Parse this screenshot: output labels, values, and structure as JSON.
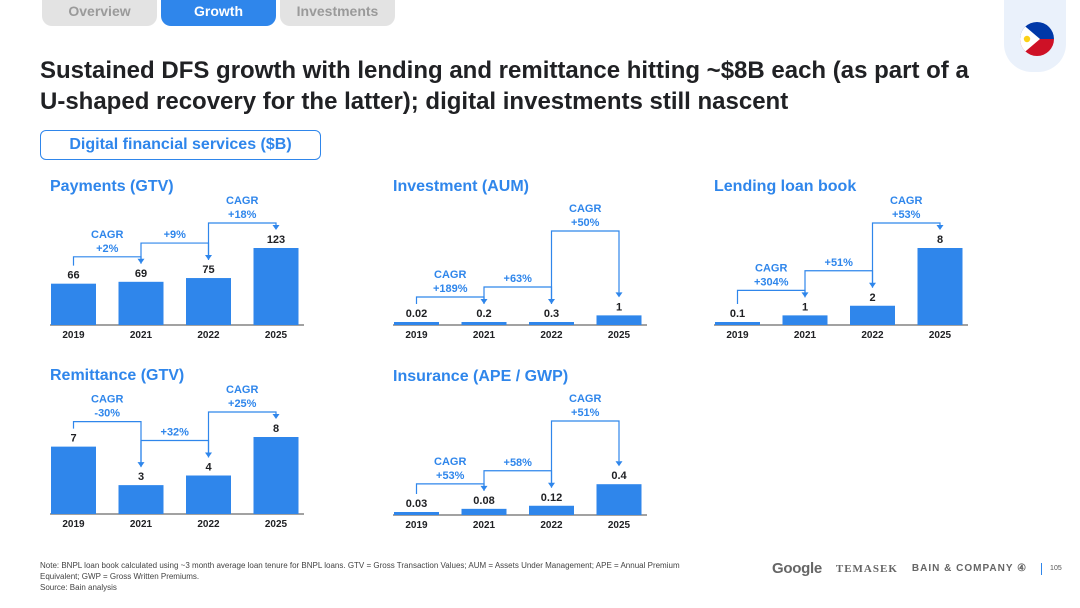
{
  "tabs": [
    {
      "label": "Overview",
      "active": false
    },
    {
      "label": "Growth",
      "active": true
    },
    {
      "label": "Investments",
      "active": false
    }
  ],
  "headline": "Sustained DFS growth with lending and remittance hitting ~$8B each (as part of a U-shaped recovery for the latter); digital investments still nascent",
  "section_label": "Digital financial services ($B)",
  "colors": {
    "accent": "#2f86eb",
    "bar": "#2f86eb",
    "text": "#202124"
  },
  "chart_data": [
    {
      "type": "bar",
      "title": "Payments (GTV)",
      "categories": [
        "2019",
        "2021",
        "2022",
        "2025"
      ],
      "values": [
        66,
        69,
        75,
        123
      ],
      "value_labels": [
        "66",
        "69",
        "75",
        "123"
      ],
      "ylim": [
        0,
        123
      ],
      "growth": [
        {
          "line1": "CAGR",
          "line2": "+2%",
          "from": 0,
          "to": 1
        },
        {
          "line1": "+9%",
          "from": 1,
          "to": 2
        },
        {
          "line1": "CAGR",
          "line2": "+18%",
          "from": 2,
          "to": 3
        }
      ]
    },
    {
      "type": "bar",
      "title": "Investment (AUM)",
      "categories": [
        "2019",
        "2021",
        "2022",
        "2025"
      ],
      "values": [
        0.02,
        0.2,
        0.3,
        1
      ],
      "value_labels": [
        "0.02",
        "0.2",
        "0.3",
        "1"
      ],
      "ylim": [
        0,
        8
      ],
      "growth": [
        {
          "line1": "CAGR",
          "line2": "+189%",
          "from": 0,
          "to": 1
        },
        {
          "line1": "+63%",
          "from": 1,
          "to": 2
        },
        {
          "line1": "CAGR",
          "line2": "+50%",
          "from": 2,
          "to": 3
        }
      ]
    },
    {
      "type": "bar",
      "title": "Lending loan book",
      "categories": [
        "2019",
        "2021",
        "2022",
        "2025"
      ],
      "values": [
        0.1,
        1,
        2,
        8
      ],
      "value_labels": [
        "0.1",
        "1",
        "2",
        "8"
      ],
      "ylim": [
        0,
        8
      ],
      "growth": [
        {
          "line1": "CAGR",
          "line2": "+304%",
          "from": 0,
          "to": 1
        },
        {
          "line1": "+51%",
          "from": 1,
          "to": 2
        },
        {
          "line1": "CAGR",
          "line2": "+53%",
          "from": 2,
          "to": 3
        }
      ]
    },
    {
      "type": "bar",
      "title": "Remittance (GTV)",
      "categories": [
        "2019",
        "2021",
        "2022",
        "2025"
      ],
      "values": [
        7,
        3,
        4,
        8
      ],
      "value_labels": [
        "7",
        "3",
        "4",
        "8"
      ],
      "ylim": [
        0,
        8
      ],
      "growth": [
        {
          "line1": "CAGR",
          "line2": "-30%",
          "from": 0,
          "to": 1
        },
        {
          "line1": "+32%",
          "from": 1,
          "to": 2
        },
        {
          "line1": "CAGR",
          "line2": "+25%",
          "from": 2,
          "to": 3
        }
      ]
    },
    {
      "type": "bar",
      "title": "Insurance (APE / GWP)",
      "categories": [
        "2019",
        "2021",
        "2022",
        "2025"
      ],
      "values": [
        0.03,
        0.08,
        0.12,
        0.4
      ],
      "value_labels": [
        "0.03",
        "0.08",
        "0.12",
        "0.4"
      ],
      "ylim": [
        0,
        1
      ],
      "growth": [
        {
          "line1": "CAGR",
          "line2": "+53%",
          "from": 0,
          "to": 1
        },
        {
          "line1": "+58%",
          "from": 1,
          "to": 2
        },
        {
          "line1": "CAGR",
          "line2": "+51%",
          "from": 2,
          "to": 3
        }
      ]
    }
  ],
  "footer": {
    "note_line1": "Note: BNPL loan book calculated using ~3 month average loan tenure for BNPL loans. GTV = Gross Transaction Values; AUM = Assets Under Management; APE = Annual Premium",
    "note_line2": "Equivalent; GWP = Gross Written Premiums.",
    "source": "Source: Bain analysis",
    "logo_google": "Google",
    "logo_temasek": "TEMASEK",
    "logo_bain": "BAIN & COMPANY ④",
    "page_number": "105"
  }
}
